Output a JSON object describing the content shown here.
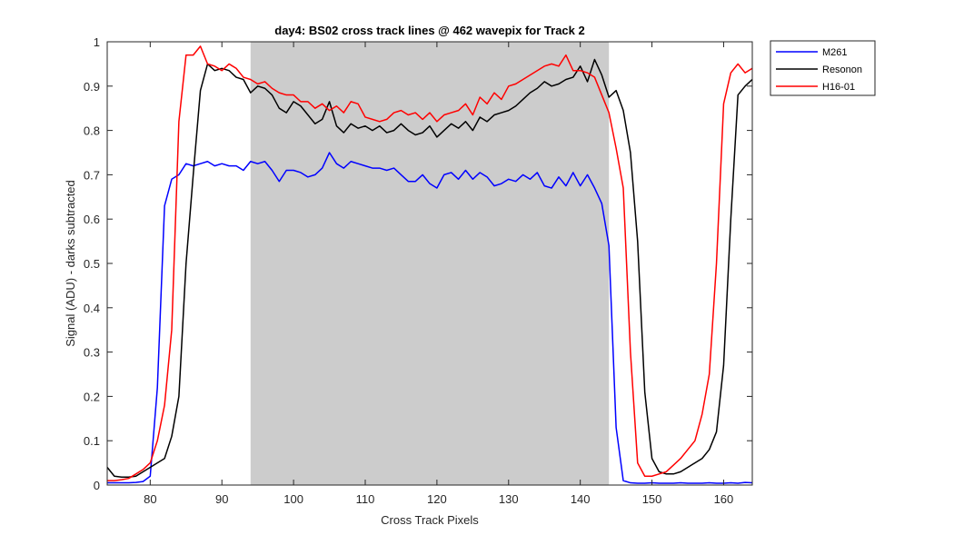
{
  "chart_data": {
    "type": "line",
    "title": "day4: BS02  cross track lines @ 462 wavepix for Track 2",
    "xlabel": "Cross Track Pixels",
    "ylabel": "Signal (ADU) - darks subtracted",
    "xlim": [
      74,
      164
    ],
    "ylim": [
      0,
      1
    ],
    "xticks": [
      80,
      90,
      100,
      110,
      120,
      130,
      140,
      150,
      160
    ],
    "xtick_labels": [
      "80",
      "90",
      "100",
      "110",
      "120",
      "130",
      "140",
      "150",
      "160"
    ],
    "yticks": [
      0,
      0.1,
      0.2,
      0.3,
      0.4,
      0.5,
      0.6,
      0.7,
      0.8,
      0.9,
      1
    ],
    "ytick_labels": [
      "0",
      "0.1",
      "0.2",
      "0.3",
      "0.4",
      "0.5",
      "0.6",
      "0.7",
      "0.8",
      "0.9",
      "1"
    ],
    "grid": false,
    "legend_position": "outside-top-right",
    "shaded_region": {
      "x_start": 94,
      "x_end": 144,
      "color": "#cccccc"
    },
    "x": [
      74,
      75,
      76,
      77,
      78,
      79,
      80,
      81,
      82,
      83,
      84,
      85,
      86,
      87,
      88,
      89,
      90,
      91,
      92,
      93,
      94,
      95,
      96,
      97,
      98,
      99,
      100,
      101,
      102,
      103,
      104,
      105,
      106,
      107,
      108,
      109,
      110,
      111,
      112,
      113,
      114,
      115,
      116,
      117,
      118,
      119,
      120,
      121,
      122,
      123,
      124,
      125,
      126,
      127,
      128,
      129,
      130,
      131,
      132,
      133,
      134,
      135,
      136,
      137,
      138,
      139,
      140,
      141,
      142,
      143,
      144,
      145,
      146,
      147,
      148,
      149,
      150,
      151,
      152,
      153,
      154,
      155,
      156,
      157,
      158,
      159,
      160,
      161,
      162,
      163,
      164
    ],
    "series": [
      {
        "name": "M261",
        "color": "#0000ff",
        "values": [
          0.005,
          0.005,
          0.005,
          0.005,
          0.006,
          0.008,
          0.02,
          0.22,
          0.63,
          0.69,
          0.7,
          0.725,
          0.72,
          0.725,
          0.73,
          0.72,
          0.725,
          0.72,
          0.72,
          0.71,
          0.73,
          0.725,
          0.73,
          0.71,
          0.685,
          0.71,
          0.71,
          0.705,
          0.695,
          0.7,
          0.715,
          0.75,
          0.725,
          0.715,
          0.73,
          0.725,
          0.72,
          0.715,
          0.715,
          0.71,
          0.715,
          0.7,
          0.685,
          0.685,
          0.7,
          0.68,
          0.67,
          0.7,
          0.705,
          0.69,
          0.71,
          0.69,
          0.705,
          0.695,
          0.675,
          0.68,
          0.69,
          0.685,
          0.7,
          0.69,
          0.705,
          0.675,
          0.67,
          0.695,
          0.675,
          0.705,
          0.675,
          0.7,
          0.67,
          0.635,
          0.54,
          0.13,
          0.01,
          0.005,
          0.004,
          0.004,
          0.005,
          0.004,
          0.004,
          0.004,
          0.005,
          0.004,
          0.004,
          0.004,
          0.005,
          0.004,
          0.004,
          0.005,
          0.004,
          0.006,
          0.005
        ]
      },
      {
        "name": "Resonon",
        "color": "#000000",
        "values": [
          0.04,
          0.02,
          0.018,
          0.018,
          0.02,
          0.03,
          0.04,
          0.05,
          0.06,
          0.11,
          0.2,
          0.5,
          0.7,
          0.89,
          0.95,
          0.935,
          0.94,
          0.935,
          0.92,
          0.915,
          0.885,
          0.9,
          0.895,
          0.88,
          0.85,
          0.84,
          0.865,
          0.855,
          0.835,
          0.815,
          0.825,
          0.865,
          0.81,
          0.795,
          0.815,
          0.805,
          0.81,
          0.8,
          0.81,
          0.795,
          0.8,
          0.815,
          0.8,
          0.79,
          0.795,
          0.81,
          0.785,
          0.8,
          0.815,
          0.805,
          0.82,
          0.8,
          0.83,
          0.82,
          0.835,
          0.84,
          0.845,
          0.855,
          0.87,
          0.885,
          0.895,
          0.91,
          0.9,
          0.905,
          0.915,
          0.92,
          0.945,
          0.91,
          0.96,
          0.925,
          0.875,
          0.89,
          0.845,
          0.75,
          0.55,
          0.21,
          0.06,
          0.03,
          0.025,
          0.025,
          0.03,
          0.04,
          0.05,
          0.06,
          0.08,
          0.12,
          0.27,
          0.6,
          0.88,
          0.9,
          0.915
        ]
      },
      {
        "name": "H16-01",
        "color": "#ff0000",
        "values": [
          0.01,
          0.01,
          0.012,
          0.015,
          0.025,
          0.035,
          0.05,
          0.1,
          0.18,
          0.35,
          0.82,
          0.97,
          0.97,
          0.99,
          0.95,
          0.945,
          0.935,
          0.95,
          0.94,
          0.92,
          0.915,
          0.905,
          0.91,
          0.895,
          0.885,
          0.88,
          0.88,
          0.865,
          0.865,
          0.85,
          0.86,
          0.845,
          0.855,
          0.84,
          0.865,
          0.86,
          0.83,
          0.825,
          0.82,
          0.825,
          0.84,
          0.845,
          0.835,
          0.84,
          0.825,
          0.84,
          0.82,
          0.835,
          0.84,
          0.845,
          0.86,
          0.835,
          0.875,
          0.86,
          0.885,
          0.87,
          0.9,
          0.905,
          0.915,
          0.925,
          0.935,
          0.945,
          0.95,
          0.945,
          0.97,
          0.935,
          0.935,
          0.93,
          0.92,
          0.88,
          0.84,
          0.76,
          0.67,
          0.3,
          0.05,
          0.02,
          0.02,
          0.025,
          0.03,
          0.045,
          0.06,
          0.08,
          0.1,
          0.16,
          0.25,
          0.5,
          0.86,
          0.93,
          0.95,
          0.93,
          0.94
        ]
      }
    ]
  }
}
